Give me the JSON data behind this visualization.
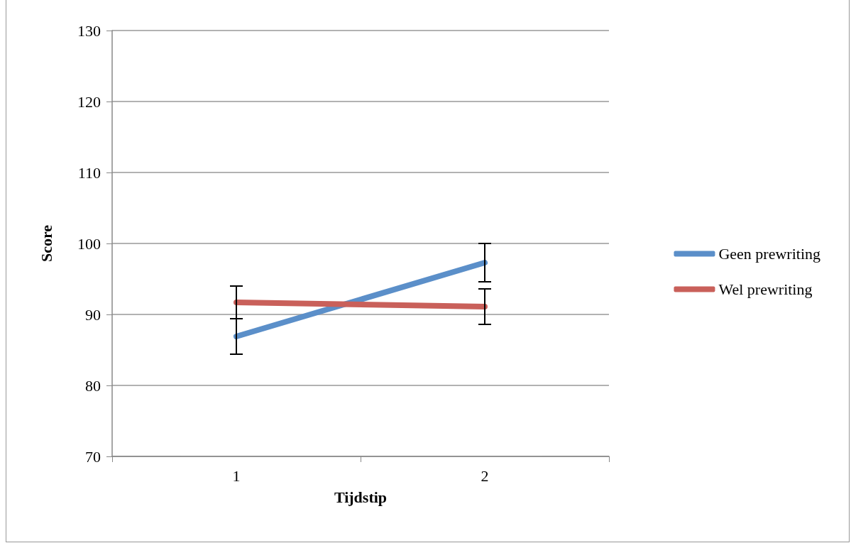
{
  "chart_data": {
    "type": "line",
    "xlabel": "Tijdstip",
    "ylabel": "Score",
    "categories": [
      "1",
      "2"
    ],
    "series": [
      {
        "name": "Geen prewriting",
        "color": "#5b8fc9",
        "values": [
          86.9,
          97.3
        ],
        "errors": [
          2.5,
          2.7
        ]
      },
      {
        "name": "Wel prewriting",
        "color": "#c9605a",
        "values": [
          91.7,
          91.1
        ],
        "errors": [
          2.3,
          2.5
        ]
      }
    ],
    "ylim": [
      70,
      130
    ],
    "yticks": [
      70,
      80,
      90,
      100,
      110,
      120,
      130
    ],
    "grid": "y",
    "legend": "right",
    "marker": "none",
    "line_style": "solid"
  }
}
